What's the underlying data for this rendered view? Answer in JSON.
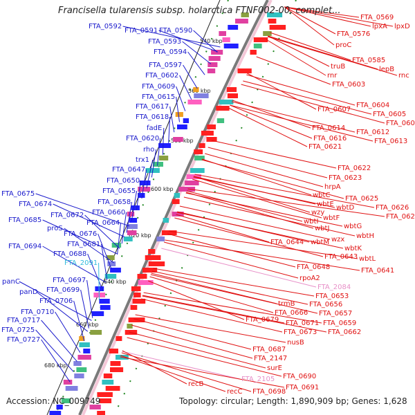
{
  "title": "Francisella tularensis subsp. holarctica FTNF002-00, complet...",
  "footer": {
    "accession": "Accession: NC_009749",
    "summary": "Topology: circular; Length: 1,890,909 bp; Genes: 1,628"
  },
  "ruler": [
    "540 kbp",
    "560 kbp",
    "580 kbp",
    "600 kbp",
    "620 kbp",
    "640 kbp",
    "660 kbp",
    "680 kbp"
  ],
  "colors": {
    "left_labels": "#1a1acc",
    "right_labels": "#e01010",
    "cyan": "#33bbdd",
    "pink": "#e890c8",
    "backbone": "#808080"
  },
  "left_labels": [
    "FTA_0592",
    "FTA_0591",
    "FTA_0590",
    "FTA_0593",
    "FTA_0594",
    "FTA_0597",
    "FTA_0602",
    "FTA_0609",
    "FTA_0615",
    "FTA_0617",
    "FTA_0618",
    "fadE",
    "FTA_0620",
    "rho",
    "trx1",
    "FTA_0647",
    "FTA_0650",
    "FTA_0655",
    "FTA_0658",
    "FTA_0660",
    "FTA_0664",
    "FTA_0675",
    "FTA_0674",
    "FTA_0672",
    "FTA_0685",
    "proS",
    "FTA_0676",
    "FTA_0681",
    "FTA_0694",
    "FTA_0688",
    "FTA_2091",
    "FTA_0697",
    "FTA_0699",
    "panC",
    "panD",
    "FTA_0706",
    "FTA_0710",
    "FTA_0717",
    "FTA_0725",
    "FTA_0727"
  ],
  "right_labels": [
    "FTA_0569",
    "lpxA",
    "lpxD",
    "FTA_0576",
    "proC",
    "FTA_0585",
    "truB",
    "lepB",
    "rnr",
    "rnc",
    "FTA_0603",
    "FTA_0604",
    "FTA_0605",
    "FTA_0607",
    "FTA_0608",
    "FTA_0614",
    "FTA_0612",
    "FTA_0616",
    "FTA_0613",
    "FTA_0621",
    "FTA_0622",
    "FTA_0623",
    "hrpA",
    "wbtC",
    "FTA_0625",
    "wbtE",
    "wbtD",
    "FTA_0626",
    "wzy",
    "wbtF",
    "FTA_0627",
    "wbtI",
    "wbtG",
    "wbtJ",
    "wbtH",
    "FTA_0644",
    "wbtM",
    "wzx",
    "wbtK",
    "FTA_0643",
    "wbtL",
    "FTA_0641",
    "FTA_0648",
    "rpoA2",
    "FTA_2084",
    "FTA_0653",
    "trmB",
    "FTA_0656",
    "FTA_0666",
    "FTA_0657",
    "FTA_0671",
    "FTA_0659",
    "FTA_0673",
    "FTA_0662",
    "FTA_0679",
    "nusB",
    "FTA_0687",
    "FTA_2147",
    "surE",
    "FTA_0690",
    "FTA_2105",
    "FTA_0691",
    "recB",
    "recC",
    "FTA_0698"
  ]
}
